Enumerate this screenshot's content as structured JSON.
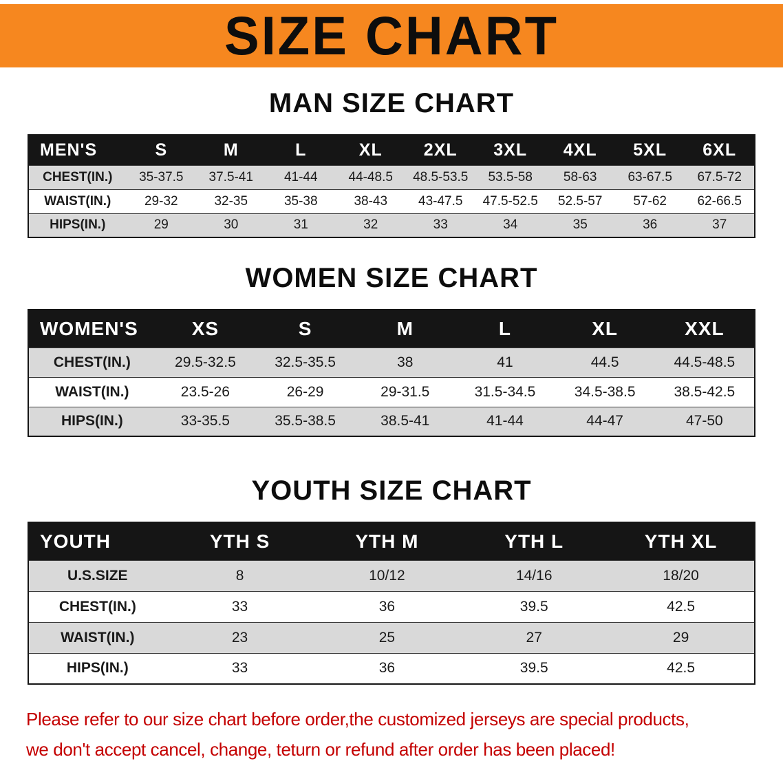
{
  "banner": {
    "title": "SIZE CHART",
    "bg_color": "#F6871F",
    "text_color": "#0D0D0D"
  },
  "colors": {
    "table_header_bg": "#151515",
    "table_alt_row": "#D9D9D9",
    "footer_text": "#C40000"
  },
  "sections": [
    {
      "title": "MAN SIZE CHART",
      "table": {
        "label": "MEN'S",
        "columns": [
          "S",
          "M",
          "L",
          "XL",
          "2XL",
          "3XL",
          "4XL",
          "5XL",
          "6XL"
        ],
        "rows": [
          {
            "label": "CHEST(IN.)",
            "values": [
              "35-37.5",
              "37.5-41",
              "41-44",
              "44-48.5",
              "48.5-53.5",
              "53.5-58",
              "58-63",
              "63-67.5",
              "67.5-72"
            ]
          },
          {
            "label": "WAIST(IN.)",
            "values": [
              "29-32",
              "32-35",
              "35-38",
              "38-43",
              "43-47.5",
              "47.5-52.5",
              "52.5-57",
              "57-62",
              "62-66.5"
            ]
          },
          {
            "label": "HIPS(IN.)",
            "values": [
              "29",
              "30",
              "31",
              "32",
              "33",
              "34",
              "35",
              "36",
              "37"
            ]
          }
        ]
      }
    },
    {
      "title": "WOMEN SIZE CHART",
      "table": {
        "label": "WOMEN'S",
        "columns": [
          "XS",
          "S",
          "M",
          "L",
          "XL",
          "XXL"
        ],
        "rows": [
          {
            "label": "CHEST(IN.)",
            "values": [
              "29.5-32.5",
              "32.5-35.5",
              "38",
              "41",
              "44.5",
              "44.5-48.5"
            ]
          },
          {
            "label": "WAIST(IN.)",
            "values": [
              "23.5-26",
              "26-29",
              "29-31.5",
              "31.5-34.5",
              "34.5-38.5",
              "38.5-42.5"
            ]
          },
          {
            "label": "HIPS(IN.)",
            "values": [
              "33-35.5",
              "35.5-38.5",
              "38.5-41",
              "41-44",
              "44-47",
              "47-50"
            ]
          }
        ]
      }
    },
    {
      "title": "YOUTH SIZE CHART",
      "table": {
        "label": "YOUTH",
        "columns": [
          "YTH S",
          "YTH M",
          "YTH L",
          "YTH XL"
        ],
        "rows": [
          {
            "label": "U.S.SIZE",
            "values": [
              "8",
              "10/12",
              "14/16",
              "18/20"
            ]
          },
          {
            "label": "CHEST(IN.)",
            "values": [
              "33",
              "36",
              "39.5",
              "42.5"
            ]
          },
          {
            "label": "WAIST(IN.)",
            "values": [
              "23",
              "25",
              "27",
              "29"
            ]
          },
          {
            "label": "HIPS(IN.)",
            "values": [
              "33",
              "36",
              "39.5",
              "42.5"
            ]
          }
        ]
      }
    }
  ],
  "footer": {
    "line1": "Please refer to our size chart before order,the customized jerseys are special products,",
    "line2": "we don't accept cancel, change, teturn or refund after order has been placed!"
  }
}
